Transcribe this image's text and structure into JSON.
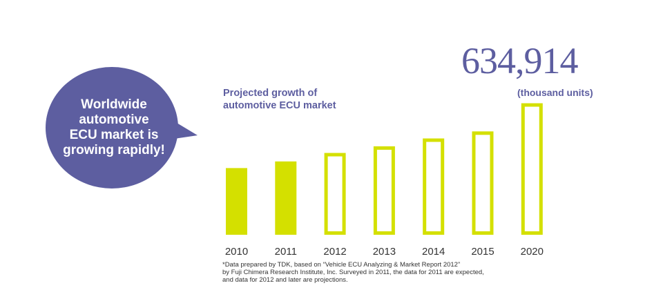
{
  "bubble": {
    "text": "Worldwide\nautomotive\nECU market is\ngrowing rapidly!"
  },
  "chart_data": {
    "type": "bar",
    "title": "Projected growth of\nautomotive ECU market",
    "highlight_value": "634,914",
    "units": "(thousand units)",
    "categories": [
      "2010",
      "2011",
      "2012",
      "2013",
      "2014",
      "2015",
      "2020"
    ],
    "values": [
      322000,
      354000,
      395000,
      427000,
      465000,
      499000,
      634914
    ],
    "projected": [
      false,
      false,
      true,
      true,
      true,
      true,
      true
    ],
    "xlabel": "",
    "ylabel": "",
    "ylim": [
      0,
      640000
    ],
    "grid": false,
    "legend": "none"
  },
  "colors": {
    "bar": "#d4e000",
    "accent": "#5d5ea0",
    "footnote": "#333333"
  },
  "footnote": "*Data prepared by TDK, based on “Vehicle ECU Analyzing & Market Report 2012”\n by Fuji Chimera Research Institute, Inc. Surveyed in 2011, the data for 2011 are expected,\n and data for 2012 and later are projections."
}
